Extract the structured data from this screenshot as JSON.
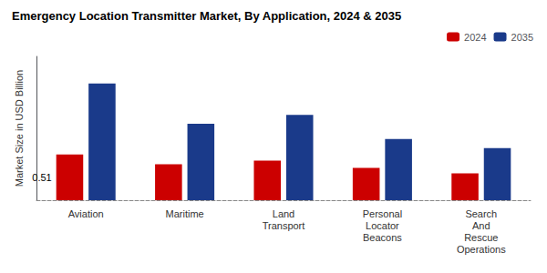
{
  "chart_data": {
    "type": "bar",
    "title": "Emergency Location Transmitter Market, By Application, 2024 & 2035",
    "ylabel": "Market Size in USD Billion",
    "categories": [
      "Aviation",
      "Maritime",
      "Land\nTransport",
      "Personal\nLocator\nBeacons",
      "Search\nAnd\nRescue\nOperations"
    ],
    "series": [
      {
        "name": "2024",
        "color": "#cc0000",
        "values": [
          0.51,
          0.4,
          0.44,
          0.36,
          0.3
        ]
      },
      {
        "name": "2035",
        "color": "#1a3a8a",
        "values": [
          1.3,
          0.85,
          0.95,
          0.68,
          0.58
        ]
      }
    ],
    "annotations": [
      {
        "text": "0.51",
        "series": "2024",
        "category": "Aviation"
      }
    ],
    "ylim": [
      0,
      1.6
    ],
    "tick_labels": "x",
    "grid": false,
    "legend": "upper right"
  }
}
